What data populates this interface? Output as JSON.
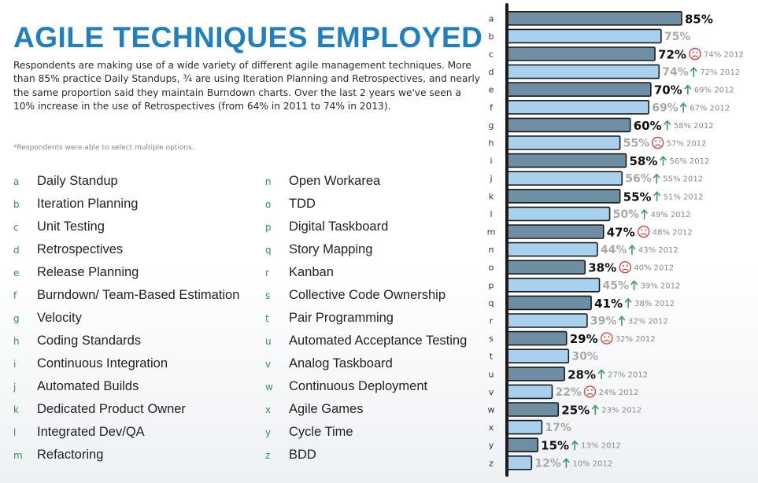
{
  "title": "AGILE TECHNIQUES EMPLOYED",
  "description": "Respondents are making use of a wide variety of different agile management techniques. More than 85% practice Daily Standups, ¾ are using Iteration Planning and Retrospectives, and nearly the same proportion said they maintain Burndown charts. Over the last 2 years we've seen a 10% increase in the use of Retrospectives (from 64% in 2011 to 74% in 2013).",
  "footnote": "*Respondents were able to select multiple options.",
  "legend": {
    "left": [
      {
        "letter": "a",
        "label": "Daily Standup"
      },
      {
        "letter": "b",
        "label": "Iteration Planning"
      },
      {
        "letter": "c",
        "label": "Unit Testing"
      },
      {
        "letter": "d",
        "label": "Retrospectives"
      },
      {
        "letter": "e",
        "label": "Release Planning"
      },
      {
        "letter": "f",
        "label": "Burndown/ Team-Based Estimation"
      },
      {
        "letter": "g",
        "label": "Velocity"
      },
      {
        "letter": "h",
        "label": "Coding Standards"
      },
      {
        "letter": "i",
        "label": "Continuous Integration"
      },
      {
        "letter": "j",
        "label": "Automated Builds"
      },
      {
        "letter": "k",
        "label": "Dedicated Product Owner"
      },
      {
        "letter": "l",
        "label": "Integrated Dev/QA"
      },
      {
        "letter": "m",
        "label": "Refactoring"
      }
    ],
    "right": [
      {
        "letter": "n",
        "label": "Open Workarea"
      },
      {
        "letter": "o",
        "label": "TDD"
      },
      {
        "letter": "p",
        "label": "Digital Taskboard"
      },
      {
        "letter": "q",
        "label": "Story Mapping"
      },
      {
        "letter": "r",
        "label": "Kanban"
      },
      {
        "letter": "s",
        "label": "Collective Code Ownership"
      },
      {
        "letter": "t",
        "label": "Pair Programming"
      },
      {
        "letter": "u",
        "label": "Automated Acceptance Testing"
      },
      {
        "letter": "v",
        "label": "Analog Taskboard"
      },
      {
        "letter": "w",
        "label": "Continuous Deployment"
      },
      {
        "letter": "x",
        "label": "Agile Games"
      },
      {
        "letter": "y",
        "label": "Cycle Time"
      },
      {
        "letter": "z",
        "label": "BDD"
      }
    ]
  },
  "colors": {
    "title": "#1f7fc0",
    "legend_letter": "#2e9a4a",
    "bar_dark": "#6e8ea3",
    "bar_light": "#a9d1ee",
    "bar_outline": "#1b1b1b",
    "value_dark": "#111111",
    "value_light": "#a9a9a9",
    "arrow_up": "#3f9a68",
    "frown": "#d9453a",
    "prior_text": "#8a8a8a"
  },
  "chart_data": {
    "type": "bar",
    "orientation": "horizontal",
    "categories": [
      "a",
      "b",
      "c",
      "d",
      "e",
      "f",
      "g",
      "h",
      "i",
      "j",
      "k",
      "l",
      "m",
      "n",
      "o",
      "p",
      "q",
      "r",
      "s",
      "t",
      "u",
      "v",
      "w",
      "x",
      "y",
      "z"
    ],
    "values": [
      85,
      75,
      72,
      74,
      70,
      69,
      60,
      55,
      58,
      56,
      55,
      50,
      47,
      44,
      38,
      45,
      41,
      39,
      29,
      30,
      28,
      22,
      25,
      17,
      15,
      12
    ],
    "value_labels": [
      "85%",
      "75%",
      "72%",
      "74%",
      "70%",
      "69%",
      "60%",
      "55%",
      "58%",
      "56%",
      "55%",
      "50%",
      "47%",
      "44%",
      "38%",
      "45%",
      "41%",
      "39%",
      "29%",
      "30%",
      "28%",
      "22%",
      "25%",
      "17%",
      "15%",
      "12%"
    ],
    "prior_2012": [
      null,
      null,
      74,
      72,
      69,
      67,
      58,
      57,
      56,
      55,
      51,
      49,
      48,
      43,
      40,
      39,
      38,
      32,
      32,
      null,
      27,
      24,
      23,
      null,
      13,
      10
    ],
    "prior_labels": [
      "",
      "",
      "74% 2012",
      "72% 2012",
      "69% 2012",
      "67% 2012",
      "58% 2012",
      "57% 2012",
      "56% 2012",
      "55% 2012",
      "51% 2012",
      "49% 2012",
      "48% 2012",
      "43% 2012",
      "40% 2012",
      "39% 2012",
      "38% 2012",
      "32% 2012",
      "32% 2012",
      "",
      "27% 2012",
      "24% 2012",
      "23% 2012",
      "",
      "13% 2012",
      "10% 2012"
    ],
    "trend": [
      "none",
      "none",
      "down",
      "up",
      "up",
      "up",
      "up",
      "down",
      "up",
      "up",
      "up",
      "up",
      "down",
      "up",
      "down",
      "up",
      "up",
      "up",
      "down",
      "none",
      "up",
      "down",
      "up",
      "none",
      "up",
      "up"
    ],
    "xlim": [
      0,
      85
    ]
  }
}
